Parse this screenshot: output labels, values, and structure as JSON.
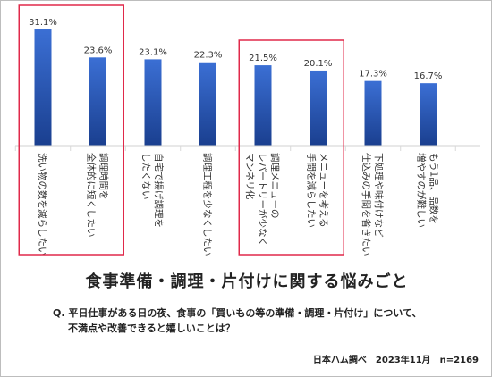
{
  "chart_data": {
    "type": "bar",
    "categories": [
      [
        "洗い物の数を減らしたい"
      ],
      [
        "調理時間を",
        "全体的に短くしたい"
      ],
      [
        "自宅で揚げ調理を",
        "したくない"
      ],
      [
        "調理工程を少なくしたい"
      ],
      [
        "調理メニューの",
        "レパートリーが少なく",
        "マンネリ化"
      ],
      [
        "メニューを考える",
        "手間を減らしたい"
      ],
      [
        "下処理や味付けなど",
        "仕込みの手間を省きたい"
      ],
      [
        "もう1品、品数を",
        "増やすのが難しい"
      ]
    ],
    "values": [
      31.1,
      23.6,
      23.1,
      22.3,
      21.5,
      20.1,
      17.3,
      16.7
    ],
    "value_labels": [
      "31.1%",
      "23.6%",
      "23.1%",
      "22.3%",
      "21.5%",
      "20.1%",
      "17.3%",
      "16.7%"
    ],
    "ylim": [
      0,
      33
    ],
    "highlight_groups": [
      [
        0,
        1
      ],
      [
        4,
        5
      ]
    ],
    "bar_color_top": "#3b6fd4",
    "bar_color_bottom": "#1a3f8f",
    "highlight_color": "#e0294a"
  },
  "title": "食事準備・調理・片付けに関する悩みごと",
  "question_line1": "Q.  平日仕事がある日の夜、食事の「買いもの等の準備・調理・片付け」について、",
  "question_line2": "不満点や改善できると嬉しいことは？",
  "source": "日本ハム調べ　2023年11月　n=2169"
}
